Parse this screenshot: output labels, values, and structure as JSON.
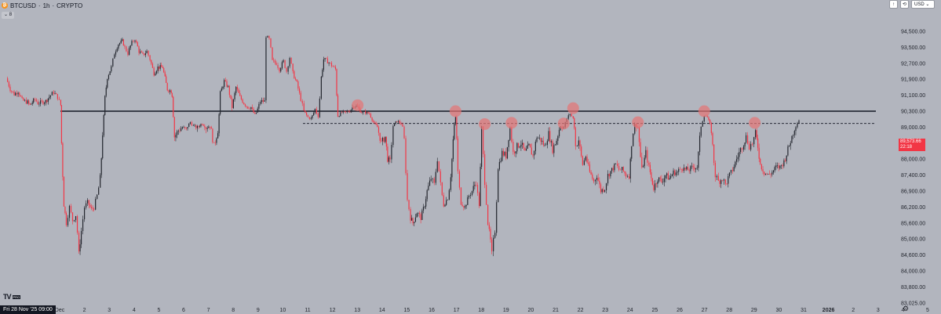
{
  "header": {
    "symbol": "BTCUSD",
    "interval": "1h",
    "exchange": "CRYPTO",
    "separator": "·",
    "coin_glyph": "₿",
    "indicator_badge": "⌄ 8",
    "buttons": [
      {
        "name": "arrow-up-icon",
        "label": "↑"
      },
      {
        "name": "refresh-icon",
        "label": "⟲"
      },
      {
        "name": "currency-select",
        "label": "USD ⌄"
      }
    ]
  },
  "footer": {
    "logo": "TV",
    "logo_tag": "PRO",
    "date_label": "Fri 28 Nov '25  09:00",
    "settings_glyph": "⚙"
  },
  "price_label": {
    "price": "89,573.66",
    "countdown": "22:18"
  },
  "colors": {
    "up": "#23262e",
    "down": "#f23645",
    "background": "#b2b5be",
    "circle": "#e57373",
    "resistance": "#131722"
  },
  "chart_data": {
    "type": "candlestick",
    "title": "",
    "y_ticks": [
      94500,
      93500,
      92700,
      91900,
      91100,
      90300,
      89000,
      88500,
      88000,
      87400,
      86900,
      86200,
      85600,
      85000,
      84600,
      84000,
      83800,
      83025
    ],
    "y_tick_labels": [
      "94,500.00",
      "93,500.00",
      "92,700.00",
      "91,900.00",
      "91,100.00",
      "90,300.00",
      "89,000.00",
      "88,500.00",
      "88,000.00",
      "87,400.00",
      "86,900.00",
      "86,200.00",
      "85,600.00",
      "85,000.00",
      "84,600.00",
      "84,000.00",
      "83,800.00",
      "83,025.00"
    ],
    "x_ticks": [
      "Dec",
      "2",
      "3",
      "4",
      "5",
      "6",
      "7",
      "8",
      "9",
      "10",
      "11",
      "12",
      "13",
      "14",
      "15",
      "16",
      "17",
      "18",
      "19",
      "20",
      "21",
      "22",
      "23",
      "24",
      "25",
      "26",
      "27",
      "28",
      "29",
      "30",
      "31",
      "2026",
      "2",
      "3",
      "4",
      "5",
      "6",
      "7"
    ],
    "path_points": [
      [
        0,
        91950
      ],
      [
        0.5,
        91400
      ],
      [
        1,
        91150
      ],
      [
        1.5,
        91300
      ],
      [
        2,
        90850
      ],
      [
        2.7,
        90750
      ],
      [
        3,
        90600
      ],
      [
        3.6,
        90900
      ],
      [
        4,
        90700
      ],
      [
        4.5,
        90750
      ],
      [
        5,
        90800
      ],
      [
        5.6,
        91100
      ],
      [
        6,
        91250
      ],
      [
        6.5,
        91000
      ],
      [
        6.9,
        90600
      ],
      [
        7.0,
        88500
      ],
      [
        7.3,
        86300
      ],
      [
        7.6,
        85600
      ],
      [
        8,
        86200
      ],
      [
        8.4,
        85700
      ],
      [
        8.8,
        85900
      ],
      [
        9.2,
        84600
      ],
      [
        9.5,
        85300
      ],
      [
        9.9,
        86200
      ],
      [
        10.3,
        86400
      ],
      [
        10.8,
        86100
      ],
      [
        11.1,
        86200
      ],
      [
        11.5,
        86700
      ],
      [
        11.9,
        87300
      ],
      [
        12.2,
        88800
      ],
      [
        12.5,
        91000
      ],
      [
        12.8,
        92000
      ],
      [
        13.3,
        92500
      ],
      [
        13.7,
        93200
      ],
      [
        14.2,
        93700
      ],
      [
        14.7,
        93900
      ],
      [
        15.0,
        93500
      ],
      [
        15.4,
        93200
      ],
      [
        15.9,
        93800
      ],
      [
        16.3,
        94000
      ],
      [
        16.8,
        93300
      ],
      [
        17.3,
        93100
      ],
      [
        17.8,
        93300
      ],
      [
        18.2,
        92900
      ],
      [
        18.7,
        92200
      ],
      [
        19.2,
        92500
      ],
      [
        19.8,
        92500
      ],
      [
        20.4,
        91400
      ],
      [
        20.9,
        91300
      ],
      [
        21.0,
        91100
      ],
      [
        21.3,
        88700
      ],
      [
        21.8,
        88900
      ],
      [
        22.3,
        89000
      ],
      [
        22.8,
        88900
      ],
      [
        23.3,
        89400
      ],
      [
        23.7,
        89100
      ],
      [
        24.2,
        89000
      ],
      [
        24.8,
        89300
      ],
      [
        25.3,
        89000
      ],
      [
        25.8,
        89100
      ],
      [
        26.3,
        88400
      ],
      [
        26.8,
        88900
      ],
      [
        27.1,
        91200
      ],
      [
        27.6,
        91800
      ],
      [
        28.1,
        91500
      ],
      [
        28.6,
        90500
      ],
      [
        29.1,
        91500
      ],
      [
        29.6,
        91000
      ],
      [
        30.1,
        90700
      ],
      [
        30.6,
        90500
      ],
      [
        31.0,
        90500
      ],
      [
        31.5,
        90000
      ],
      [
        32.0,
        90600
      ],
      [
        32.2,
        90800
      ],
      [
        32.7,
        90800
      ],
      [
        32.9,
        94200
      ],
      [
        33.3,
        94000
      ],
      [
        33.7,
        92800
      ],
      [
        34.2,
        92700
      ],
      [
        34.6,
        92400
      ],
      [
        35.1,
        92800
      ],
      [
        35.5,
        92300
      ],
      [
        35.9,
        93000
      ],
      [
        36.3,
        92200
      ],
      [
        36.8,
        91700
      ],
      [
        37.3,
        90900
      ],
      [
        37.7,
        90300
      ],
      [
        38.2,
        89800
      ],
      [
        38.6,
        89700
      ],
      [
        39.1,
        90400
      ],
      [
        39.5,
        89900
      ],
      [
        39.9,
        92000
      ],
      [
        40.2,
        92900
      ],
      [
        40.7,
        92800
      ],
      [
        41.2,
        92600
      ],
      [
        41.7,
        92400
      ],
      [
        42.0,
        89900
      ],
      [
        42.5,
        90200
      ],
      [
        43.0,
        90200
      ],
      [
        43.5,
        90300
      ],
      [
        44.0,
        90600
      ],
      [
        44.5,
        90500
      ],
      [
        45.0,
        90200
      ],
      [
        45.5,
        90200
      ],
      [
        46.0,
        90100
      ],
      [
        46.5,
        89400
      ],
      [
        47.0,
        89000
      ],
      [
        47.5,
        88500
      ],
      [
        48.0,
        88700
      ],
      [
        48.3,
        88000
      ],
      [
        48.6,
        87900
      ],
      [
        49.0,
        89100
      ],
      [
        49.5,
        89500
      ],
      [
        50.0,
        89300
      ],
      [
        50.4,
        88600
      ],
      [
        50.8,
        86500
      ],
      [
        51.2,
        85800
      ],
      [
        51.5,
        85600
      ],
      [
        52.0,
        86000
      ],
      [
        52.5,
        85800
      ],
      [
        53.0,
        86300
      ],
      [
        53.3,
        86900
      ],
      [
        53.8,
        87300
      ],
      [
        54.2,
        87100
      ],
      [
        54.6,
        88000
      ],
      [
        55.0,
        87100
      ],
      [
        55.4,
        86300
      ],
      [
        55.9,
        86600
      ],
      [
        56.3,
        87400
      ],
      [
        56.9,
        89800
      ],
      [
        57.2,
        87500
      ],
      [
        57.6,
        86400
      ],
      [
        58.1,
        86200
      ],
      [
        58.6,
        86700
      ],
      [
        59.0,
        86900
      ],
      [
        59.5,
        87200
      ],
      [
        59.9,
        86300
      ],
      [
        60.2,
        89000
      ],
      [
        60.6,
        87200
      ],
      [
        61.0,
        85600
      ],
      [
        61.5,
        84600
      ],
      [
        61.9,
        85300
      ],
      [
        62.3,
        87700
      ],
      [
        62.8,
        88200
      ],
      [
        63.3,
        88100
      ],
      [
        63.8,
        89000
      ],
      [
        64.2,
        88200
      ],
      [
        64.7,
        88400
      ],
      [
        65.2,
        88500
      ],
      [
        65.7,
        88200
      ],
      [
        66.2,
        88400
      ],
      [
        66.7,
        88100
      ],
      [
        67.2,
        88700
      ],
      [
        67.7,
        88600
      ],
      [
        68.2,
        88400
      ],
      [
        68.7,
        88800
      ],
      [
        69.2,
        88300
      ],
      [
        69.7,
        88600
      ],
      [
        70.2,
        89100
      ],
      [
        70.6,
        89000
      ],
      [
        71.0,
        89700
      ],
      [
        71.4,
        90100
      ],
      [
        71.8,
        89700
      ],
      [
        72.1,
        88400
      ],
      [
        72.5,
        88600
      ],
      [
        73.0,
        87800
      ],
      [
        73.4,
        88100
      ],
      [
        73.9,
        87500
      ],
      [
        74.4,
        87200
      ],
      [
        74.8,
        87400
      ],
      [
        75.3,
        86900
      ],
      [
        75.8,
        87000
      ],
      [
        76.2,
        87400
      ],
      [
        76.7,
        87600
      ],
      [
        77.2,
        87800
      ],
      [
        77.6,
        87600
      ],
      [
        78.0,
        87600
      ],
      [
        78.5,
        87400
      ],
      [
        78.9,
        87400
      ],
      [
        79.2,
        88500
      ],
      [
        79.6,
        89200
      ],
      [
        80.0,
        89000
      ],
      [
        80.5,
        87600
      ],
      [
        81.0,
        88200
      ],
      [
        81.4,
        87700
      ],
      [
        81.7,
        87300
      ],
      [
        82.0,
        87000
      ],
      [
        82.5,
        87300
      ],
      [
        83.0,
        87200
      ],
      [
        83.5,
        87400
      ],
      [
        84.0,
        87300
      ],
      [
        84.5,
        87500
      ],
      [
        85.0,
        87500
      ],
      [
        85.5,
        87700
      ],
      [
        86.0,
        87600
      ],
      [
        86.5,
        87600
      ],
      [
        87.0,
        87700
      ],
      [
        87.5,
        87700
      ],
      [
        88.0,
        89100
      ],
      [
        88.4,
        90000
      ],
      [
        88.8,
        89800
      ],
      [
        89.3,
        88900
      ],
      [
        89.8,
        87400
      ],
      [
        90.2,
        87200
      ],
      [
        90.7,
        87300
      ],
      [
        91.1,
        87100
      ],
      [
        91.6,
        87400
      ],
      [
        92.0,
        87600
      ],
      [
        92.5,
        88000
      ],
      [
        93.0,
        88300
      ],
      [
        93.4,
        88500
      ],
      [
        93.7,
        88700
      ],
      [
        94.1,
        88400
      ],
      [
        94.5,
        88500
      ],
      [
        94.9,
        88800
      ],
      [
        95.2,
        88400
      ],
      [
        95.5,
        87800
      ],
      [
        96.0,
        87500
      ],
      [
        96.5,
        87400
      ],
      [
        97.0,
        87500
      ],
      [
        97.5,
        87700
      ],
      [
        98.0,
        87700
      ],
      [
        98.5,
        87900
      ],
      [
        99.0,
        88300
      ],
      [
        99.5,
        88700
      ],
      [
        100.0,
        89100
      ],
      [
        100.4,
        89600
      ]
    ],
    "resistance_level": 90300,
    "support_level": 89300,
    "touch_points": [
      {
        "t": 44.5,
        "price": 90600
      },
      {
        "t": 56.9,
        "price": 90300
      },
      {
        "t": 60.6,
        "price": 89250
      },
      {
        "t": 64.0,
        "price": 89350
      },
      {
        "t": 70.6,
        "price": 89300
      },
      {
        "t": 71.8,
        "price": 90450
      },
      {
        "t": 80.0,
        "price": 89400
      },
      {
        "t": 88.4,
        "price": 90300
      },
      {
        "t": 94.8,
        "price": 89350
      }
    ]
  }
}
